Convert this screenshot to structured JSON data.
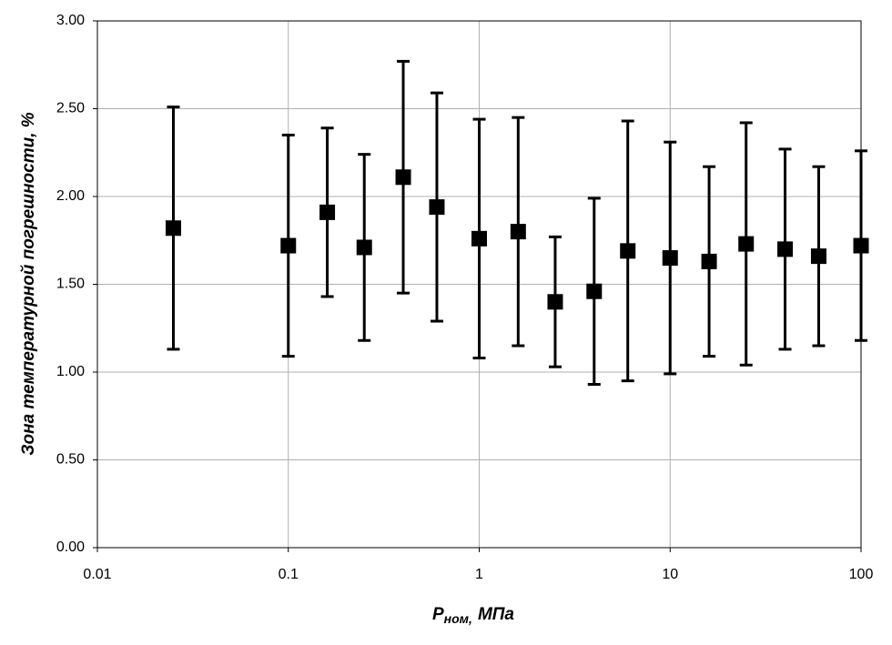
{
  "chart_data": {
    "type": "scatter",
    "ylabel": "Зона температурной погрешности, %",
    "xlabel": {
      "symbol": "P",
      "subscript": "ном,",
      "unit": "МПа"
    },
    "x": [
      0.025,
      0.1,
      0.16,
      0.25,
      0.4,
      0.6,
      1,
      1.6,
      2.5,
      4,
      6,
      10,
      16,
      25,
      40,
      60,
      100
    ],
    "series": [
      {
        "color": "#000000",
        "values": [
          1.82,
          1.72,
          1.91,
          1.71,
          2.11,
          1.94,
          1.76,
          1.8,
          1.4,
          1.46,
          1.69,
          1.65,
          1.63,
          1.73,
          1.7,
          1.66,
          1.72
        ],
        "errors": [
          0.69,
          0.63,
          0.48,
          0.53,
          0.66,
          0.65,
          0.68,
          0.65,
          0.37,
          0.53,
          0.74,
          0.66,
          0.54,
          0.69,
          0.57,
          0.51,
          0.54
        ]
      }
    ],
    "xscale": "log",
    "xlim": [
      0.01,
      100
    ],
    "xticks": [
      0.01,
      0.1,
      1,
      10,
      100
    ],
    "ylim": [
      0,
      3
    ],
    "yticks": [
      {
        "value": 0,
        "label": "0.00"
      },
      {
        "value": 0.5,
        "label": "0.50"
      },
      {
        "value": 1,
        "label": "1.00"
      },
      {
        "value": 1.5,
        "label": "1.50"
      },
      {
        "value": 2,
        "label": "2.00"
      },
      {
        "value": 2.5,
        "label": "2.50"
      },
      {
        "value": 3,
        "label": "3.00"
      }
    ],
    "grid": true
  }
}
